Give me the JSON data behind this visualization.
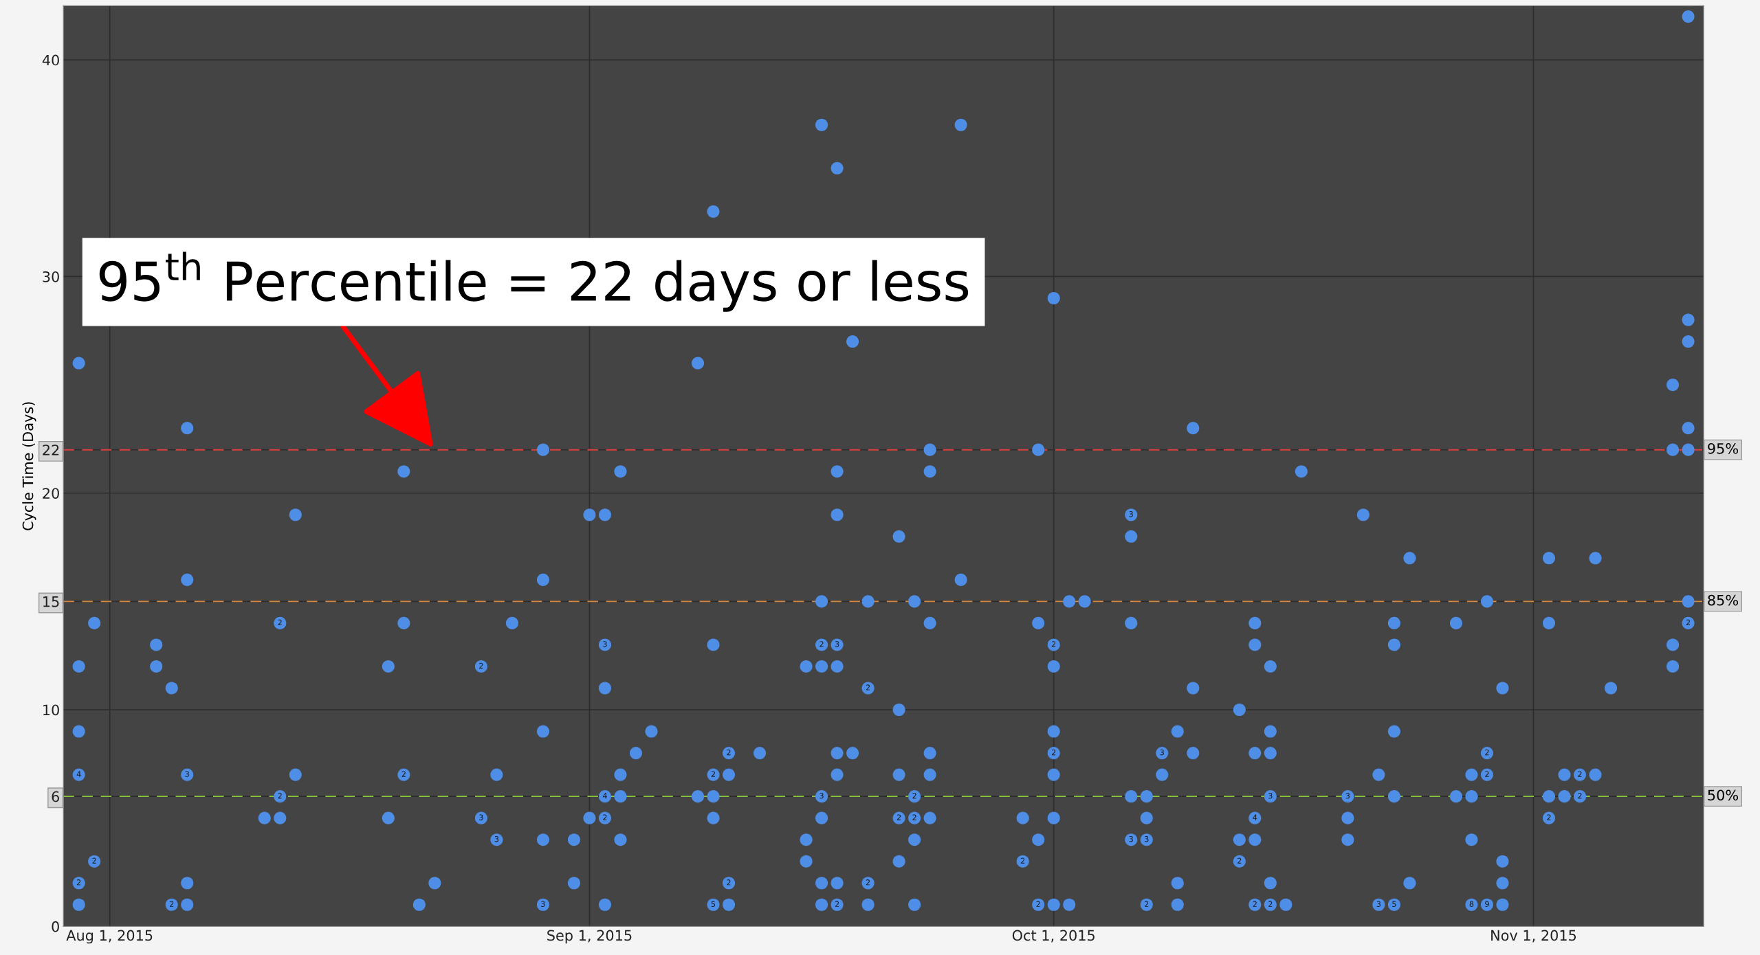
{
  "chart_data": {
    "type": "scatter",
    "ylabel": "Cycle Time (Days)",
    "color": "#4f8ee6",
    "marker": "circle",
    "grid": true,
    "x": [
      "2015-07-30",
      "2015-07-30",
      "2015-07-30",
      "2015-07-30",
      "2015-07-30",
      "2015-07-30",
      "2015-07-31",
      "2015-07-31",
      "2015-08-04",
      "2015-08-04",
      "2015-08-05",
      "2015-08-05",
      "2015-08-06",
      "2015-08-06",
      "2015-08-06",
      "2015-08-06",
      "2015-08-06",
      "2015-08-11",
      "2015-08-12",
      "2015-08-12",
      "2015-08-12",
      "2015-08-13",
      "2015-08-13",
      "2015-08-19",
      "2015-08-19",
      "2015-08-20",
      "2015-08-20",
      "2015-08-20",
      "2015-08-21",
      "2015-08-22",
      "2015-08-25",
      "2015-08-25",
      "2015-08-26",
      "2015-08-26",
      "2015-08-27",
      "2015-08-29",
      "2015-08-29",
      "2015-08-29",
      "2015-08-29",
      "2015-08-29",
      "2015-08-31",
      "2015-08-31",
      "2015-09-01",
      "2015-09-01",
      "2015-09-02",
      "2015-09-02",
      "2015-09-02",
      "2015-09-02",
      "2015-09-02",
      "2015-09-02",
      "2015-09-03",
      "2015-09-03",
      "2015-09-03",
      "2015-09-03",
      "2015-09-04",
      "2015-09-05",
      "2015-09-08",
      "2015-09-08",
      "2015-09-09",
      "2015-09-09",
      "2015-09-09",
      "2015-09-09",
      "2015-09-09",
      "2015-09-09",
      "2015-09-10",
      "2015-09-10",
      "2015-09-10",
      "2015-09-10",
      "2015-09-12",
      "2015-09-15",
      "2015-09-15",
      "2015-09-15",
      "2015-09-16",
      "2015-09-16",
      "2015-09-16",
      "2015-09-16",
      "2015-09-16",
      "2015-09-16",
      "2015-09-16",
      "2015-09-16",
      "2015-09-17",
      "2015-09-17",
      "2015-09-17",
      "2015-09-17",
      "2015-09-17",
      "2015-09-17",
      "2015-09-17",
      "2015-09-17",
      "2015-09-17",
      "2015-09-18",
      "2015-09-18",
      "2015-09-19",
      "2015-09-19",
      "2015-09-19",
      "2015-09-19",
      "2015-09-21",
      "2015-09-21",
      "2015-09-21",
      "2015-09-21",
      "2015-09-21",
      "2015-09-22",
      "2015-09-22",
      "2015-09-22",
      "2015-09-22",
      "2015-09-22",
      "2015-09-23",
      "2015-09-23",
      "2015-09-23",
      "2015-09-23",
      "2015-09-23",
      "2015-09-23",
      "2015-09-25",
      "2015-09-25",
      "2015-09-29",
      "2015-09-29",
      "2015-09-30",
      "2015-09-30",
      "2015-09-30",
      "2015-09-30",
      "2015-10-01",
      "2015-10-01",
      "2015-10-01",
      "2015-10-01",
      "2015-10-01",
      "2015-10-01",
      "2015-10-01",
      "2015-10-01",
      "2015-10-02",
      "2015-10-02",
      "2015-10-03",
      "2015-10-06",
      "2015-10-06",
      "2015-10-06",
      "2015-10-06",
      "2015-10-06",
      "2015-10-07",
      "2015-10-07",
      "2015-10-07",
      "2015-10-07",
      "2015-10-08",
      "2015-10-08",
      "2015-10-09",
      "2015-10-09",
      "2015-10-09",
      "2015-10-10",
      "2015-10-10",
      "2015-10-10",
      "2015-10-13",
      "2015-10-13",
      "2015-10-13",
      "2015-10-14",
      "2015-10-14",
      "2015-10-14",
      "2015-10-14",
      "2015-10-14",
      "2015-10-14",
      "2015-10-15",
      "2015-10-15",
      "2015-10-15",
      "2015-10-15",
      "2015-10-15",
      "2015-10-15",
      "2015-10-16",
      "2015-10-17",
      "2015-10-20",
      "2015-10-20",
      "2015-10-20",
      "2015-10-21",
      "2015-10-22",
      "2015-10-22",
      "2015-10-23",
      "2015-10-23",
      "2015-10-23",
      "2015-10-23",
      "2015-10-23",
      "2015-10-24",
      "2015-10-24",
      "2015-10-27",
      "2015-10-27",
      "2015-10-28",
      "2015-10-28",
      "2015-10-28",
      "2015-10-28",
      "2015-10-29",
      "2015-10-29",
      "2015-10-29",
      "2015-10-29",
      "2015-10-30",
      "2015-10-30",
      "2015-10-30",
      "2015-10-30",
      "2015-11-02",
      "2015-11-02",
      "2015-11-02",
      "2015-11-02",
      "2015-11-03",
      "2015-11-03",
      "2015-11-04",
      "2015-11-04",
      "2015-11-05",
      "2015-11-05",
      "2015-11-06",
      "2015-11-10",
      "2015-11-10",
      "2015-11-10",
      "2015-11-10",
      "2015-11-11",
      "2015-11-11",
      "2015-11-11",
      "2015-11-11",
      "2015-11-11",
      "2015-11-11",
      "2015-11-11"
    ],
    "values": [
      26,
      12,
      9,
      7,
      2,
      1,
      14,
      3,
      13,
      12,
      11,
      1,
      23,
      16,
      7,
      2,
      1,
      5,
      14,
      6,
      5,
      19,
      7,
      12,
      5,
      21,
      14,
      7,
      1,
      2,
      12,
      5,
      7,
      4,
      14,
      22,
      16,
      9,
      4,
      1,
      4,
      2,
      19,
      5,
      19,
      13,
      11,
      6,
      5,
      1,
      21,
      7,
      6,
      4,
      8,
      9,
      26,
      6,
      33,
      13,
      7,
      6,
      5,
      1,
      8,
      7,
      2,
      1,
      8,
      12,
      4,
      3,
      37,
      15,
      13,
      12,
      6,
      5,
      2,
      1,
      35,
      21,
      19,
      13,
      12,
      8,
      7,
      2,
      1,
      27,
      8,
      15,
      11,
      2,
      1,
      18,
      10,
      7,
      5,
      3,
      15,
      6,
      5,
      4,
      1,
      22,
      21,
      14,
      8,
      7,
      5,
      37,
      16,
      5,
      3,
      22,
      14,
      4,
      1,
      29,
      13,
      12,
      9,
      8,
      7,
      5,
      1,
      15,
      1,
      15,
      19,
      18,
      14,
      6,
      4,
      6,
      5,
      4,
      1,
      8,
      7,
      9,
      2,
      1,
      23,
      11,
      8,
      10,
      4,
      3,
      14,
      13,
      8,
      5,
      4,
      1,
      12,
      9,
      8,
      6,
      2,
      1,
      1,
      21,
      6,
      5,
      4,
      19,
      7,
      1,
      14,
      13,
      9,
      6,
      1,
      17,
      2,
      14,
      6,
      7,
      6,
      4,
      1,
      15,
      8,
      7,
      1,
      11,
      3,
      2,
      1,
      17,
      14,
      6,
      5,
      7,
      6,
      7,
      6,
      17,
      7,
      11,
      25,
      22,
      13,
      12,
      42,
      28,
      27,
      23,
      22,
      15,
      14
    ],
    "xlim": [
      "2015-07-29",
      "2015-11-12"
    ],
    "xticks": [
      {
        "value": "2015-08-01",
        "label": "Aug 1, 2015"
      },
      {
        "value": "2015-09-01",
        "label": "Sep 1, 2015"
      },
      {
        "value": "2015-10-01",
        "label": "Oct 1, 2015"
      },
      {
        "value": "2015-11-01",
        "label": "Nov 1, 2015"
      }
    ],
    "ylim": [
      0,
      42.5
    ],
    "yticks": [
      0,
      6,
      10,
      15,
      20,
      22,
      30,
      40
    ],
    "ref_lines": [
      {
        "axis": "y",
        "value": 22,
        "color": "#e04040",
        "line_style": "dashed"
      },
      {
        "axis": "y",
        "value": 15,
        "color": "#d98a3e",
        "line_style": "dashed"
      },
      {
        "axis": "y",
        "value": 6,
        "color": "#8cc63f",
        "line_style": "dashed"
      }
    ],
    "annotations": [
      {
        "text": "95$^{th}$ Percentile = 22 days or less",
        "x": "2015-08-22",
        "y": 22
      },
      {
        "text": "4",
        "x": "2015-07-30",
        "y": 7
      },
      {
        "text": "2",
        "x": "2015-07-30",
        "y": 2
      },
      {
        "text": "2",
        "x": "2015-07-31",
        "y": 3
      },
      {
        "text": "2",
        "x": "2015-08-05",
        "y": 1
      },
      {
        "text": "3",
        "x": "2015-08-06",
        "y": 7
      },
      {
        "text": "2",
        "x": "2015-08-12",
        "y": 14
      },
      {
        "text": "2",
        "x": "2015-08-12",
        "y": 6
      },
      {
        "text": "2",
        "x": "2015-08-20",
        "y": 7
      },
      {
        "text": "2",
        "x": "2015-08-25",
        "y": 12
      },
      {
        "text": "3",
        "x": "2015-08-25",
        "y": 5
      },
      {
        "text": "3",
        "x": "2015-08-26",
        "y": 4
      },
      {
        "text": "3",
        "x": "2015-08-29",
        "y": 1
      },
      {
        "text": "3",
        "x": "2015-09-02",
        "y": 13
      },
      {
        "text": "4",
        "x": "2015-09-02",
        "y": 6
      },
      {
        "text": "2",
        "x": "2015-09-02",
        "y": 5
      },
      {
        "text": "2",
        "x": "2015-09-09",
        "y": 7
      },
      {
        "text": "5",
        "x": "2015-09-09",
        "y": 1
      },
      {
        "text": "2",
        "x": "2015-09-10",
        "y": 8
      },
      {
        "text": "2",
        "x": "2015-09-10",
        "y": 2
      },
      {
        "text": "2",
        "x": "2015-09-16",
        "y": 13
      },
      {
        "text": "3",
        "x": "2015-09-16",
        "y": 6
      },
      {
        "text": "3",
        "x": "2015-09-17",
        "y": 13
      },
      {
        "text": "2",
        "x": "2015-09-17",
        "y": 1
      },
      {
        "text": "2",
        "x": "2015-09-19",
        "y": 11
      },
      {
        "text": "2",
        "x": "2015-09-19",
        "y": 2
      },
      {
        "text": "2",
        "x": "2015-09-21",
        "y": 5
      },
      {
        "text": "2",
        "x": "2015-09-22",
        "y": 6
      },
      {
        "text": "2",
        "x": "2015-09-22",
        "y": 5
      },
      {
        "text": "2",
        "x": "2015-09-29",
        "y": 3
      },
      {
        "text": "2",
        "x": "2015-09-30",
        "y": 1
      },
      {
        "text": "2",
        "x": "2015-10-01",
        "y": 13
      },
      {
        "text": "2",
        "x": "2015-10-01",
        "y": 8
      },
      {
        "text": "3",
        "x": "2015-10-06",
        "y": 19
      },
      {
        "text": "3",
        "x": "2015-10-06",
        "y": 4
      },
      {
        "text": "3",
        "x": "2015-10-07",
        "y": 4
      },
      {
        "text": "2",
        "x": "2015-10-07",
        "y": 1
      },
      {
        "text": "3",
        "x": "2015-10-08",
        "y": 8
      },
      {
        "text": "2",
        "x": "2015-10-13",
        "y": 3
      },
      {
        "text": "4",
        "x": "2015-10-14",
        "y": 5
      },
      {
        "text": "2",
        "x": "2015-10-14",
        "y": 1
      },
      {
        "text": "3",
        "x": "2015-10-15",
        "y": 6
      },
      {
        "text": "2",
        "x": "2015-10-15",
        "y": 1
      },
      {
        "text": "3",
        "x": "2015-10-20",
        "y": 6
      },
      {
        "text": "3",
        "x": "2015-10-22",
        "y": 1
      },
      {
        "text": "5",
        "x": "2015-10-23",
        "y": 1
      },
      {
        "text": "8",
        "x": "2015-10-28",
        "y": 1
      },
      {
        "text": "2",
        "x": "2015-10-29",
        "y": 8
      },
      {
        "text": "2",
        "x": "2015-10-29",
        "y": 7
      },
      {
        "text": "9",
        "x": "2015-10-29",
        "y": 1
      },
      {
        "text": "2",
        "x": "2015-11-02",
        "y": 5
      },
      {
        "text": "2",
        "x": "2015-11-04",
        "y": 7
      },
      {
        "text": "2",
        "x": "2015-11-04",
        "y": 6
      },
      {
        "text": "2",
        "x": "2015-11-11",
        "y": 14
      },
      "95%",
      "85%",
      "50%"
    ]
  }
}
